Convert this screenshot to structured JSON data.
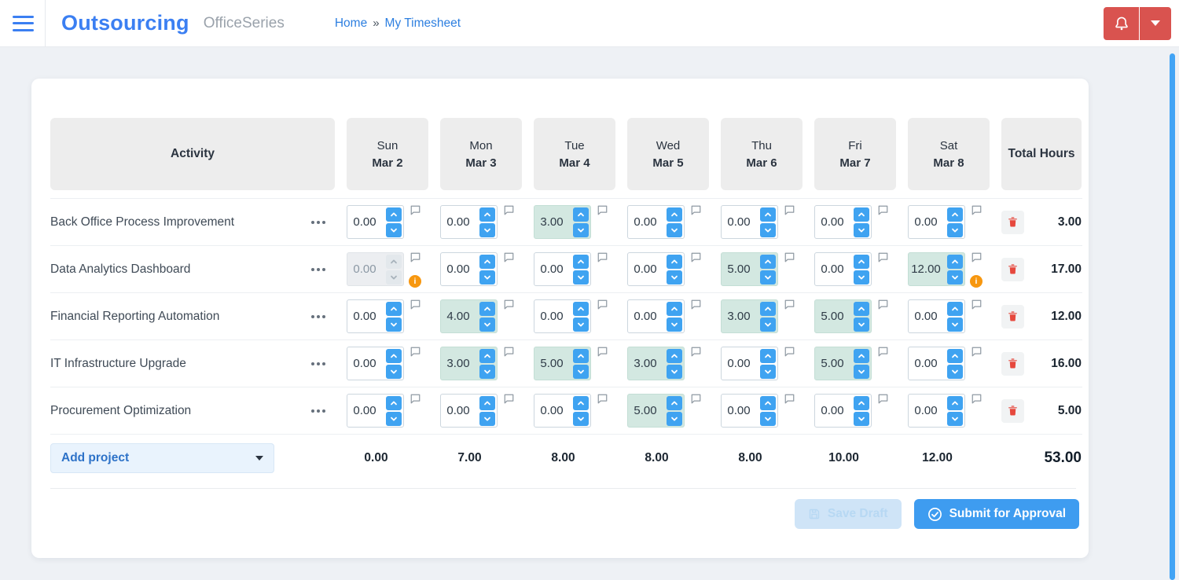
{
  "header": {
    "logo": "Outsourcing",
    "product": "OfficeSeries",
    "breadcrumb": {
      "home": "Home",
      "separator": "»",
      "current": "My Timesheet"
    }
  },
  "table": {
    "activity_header": "Activity",
    "total_header": "Total Hours",
    "days": [
      {
        "name": "Sun",
        "date": "Mar 2"
      },
      {
        "name": "Mon",
        "date": "Mar 3"
      },
      {
        "name": "Tue",
        "date": "Mar 4"
      },
      {
        "name": "Wed",
        "date": "Mar 5"
      },
      {
        "name": "Thu",
        "date": "Mar 6"
      },
      {
        "name": "Fri",
        "date": "Mar 7"
      },
      {
        "name": "Sat",
        "date": "Mar 8"
      }
    ],
    "rows": [
      {
        "activity": "Back Office Process Improvement",
        "cells": [
          {
            "value": "0.00",
            "state": "normal",
            "warning": false
          },
          {
            "value": "0.00",
            "state": "normal",
            "warning": false
          },
          {
            "value": "3.00",
            "state": "filled",
            "warning": false
          },
          {
            "value": "0.00",
            "state": "normal",
            "warning": false
          },
          {
            "value": "0.00",
            "state": "normal",
            "warning": false
          },
          {
            "value": "0.00",
            "state": "normal",
            "warning": false
          },
          {
            "value": "0.00",
            "state": "normal",
            "warning": false
          }
        ],
        "total": "3.00"
      },
      {
        "activity": "Data Analytics Dashboard",
        "cells": [
          {
            "value": "0.00",
            "state": "disabled",
            "warning": true
          },
          {
            "value": "0.00",
            "state": "normal",
            "warning": false
          },
          {
            "value": "0.00",
            "state": "normal",
            "warning": false
          },
          {
            "value": "0.00",
            "state": "normal",
            "warning": false
          },
          {
            "value": "5.00",
            "state": "filled",
            "warning": false
          },
          {
            "value": "0.00",
            "state": "normal",
            "warning": false
          },
          {
            "value": "12.00",
            "state": "filled",
            "warning": true
          }
        ],
        "total": "17.00"
      },
      {
        "activity": "Financial Reporting Automation",
        "cells": [
          {
            "value": "0.00",
            "state": "normal",
            "warning": false
          },
          {
            "value": "4.00",
            "state": "filled",
            "warning": false
          },
          {
            "value": "0.00",
            "state": "normal",
            "warning": false
          },
          {
            "value": "0.00",
            "state": "normal",
            "warning": false
          },
          {
            "value": "3.00",
            "state": "filled",
            "warning": false
          },
          {
            "value": "5.00",
            "state": "filled",
            "warning": false
          },
          {
            "value": "0.00",
            "state": "normal",
            "warning": false
          }
        ],
        "total": "12.00"
      },
      {
        "activity": "IT Infrastructure Upgrade",
        "cells": [
          {
            "value": "0.00",
            "state": "normal",
            "warning": false
          },
          {
            "value": "3.00",
            "state": "filled",
            "warning": false
          },
          {
            "value": "5.00",
            "state": "filled",
            "warning": false
          },
          {
            "value": "3.00",
            "state": "filled",
            "warning": false
          },
          {
            "value": "0.00",
            "state": "normal",
            "warning": false
          },
          {
            "value": "5.00",
            "state": "filled",
            "warning": false
          },
          {
            "value": "0.00",
            "state": "normal",
            "warning": false
          }
        ],
        "total": "16.00"
      },
      {
        "activity": "Procurement Optimization",
        "cells": [
          {
            "value": "0.00",
            "state": "normal",
            "warning": false
          },
          {
            "value": "0.00",
            "state": "normal",
            "warning": false
          },
          {
            "value": "0.00",
            "state": "normal",
            "warning": false
          },
          {
            "value": "5.00",
            "state": "filled",
            "warning": false
          },
          {
            "value": "0.00",
            "state": "normal",
            "warning": false
          },
          {
            "value": "0.00",
            "state": "normal",
            "warning": false
          },
          {
            "value": "0.00",
            "state": "normal",
            "warning": false
          }
        ],
        "total": "5.00"
      }
    ],
    "footer": {
      "add_project": "Add project",
      "day_totals": [
        "0.00",
        "7.00",
        "8.00",
        "8.00",
        "8.00",
        "10.00",
        "12.00"
      ],
      "grand_total": "53.00"
    }
  },
  "actions": {
    "save_draft": "Save Draft",
    "submit": "Submit for Approval"
  },
  "icons": {
    "warning_glyph": "i"
  },
  "colors": {
    "accent_blue": "#3e9cf0",
    "logo_blue": "#3b7ff2",
    "alert_red": "#d9534f",
    "filled_cell": "#d3e8e1",
    "warning_orange": "#f7970f",
    "delete_red": "#e6483d"
  }
}
